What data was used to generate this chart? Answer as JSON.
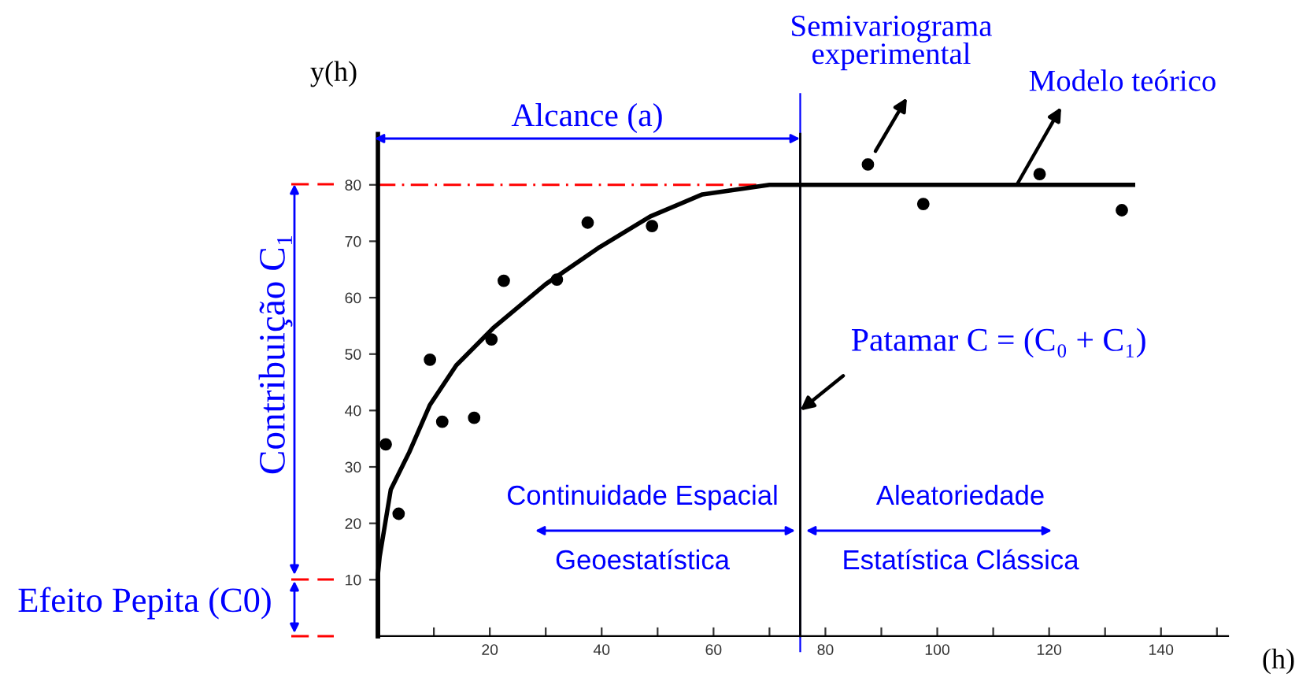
{
  "chart_data": {
    "type": "scatter",
    "xlabel": "(h)",
    "ylabel": "y(h)",
    "xlim": [
      0,
      152
    ],
    "ylim": [
      0,
      89
    ],
    "xticks": [
      {
        "value": 10,
        "label": null
      },
      20,
      {
        "value": 30,
        "label": null
      },
      40,
      {
        "value": 50,
        "label": null
      },
      60,
      {
        "value": 70,
        "label": null
      },
      80,
      {
        "value": 90,
        "label": null
      },
      100,
      {
        "value": 110,
        "label": null
      },
      120,
      {
        "value": 130,
        "label": null
      },
      140,
      {
        "value": 150,
        "label": null
      }
    ],
    "yticks": [
      10,
      20,
      30,
      40,
      50,
      60,
      70,
      80
    ],
    "grid": false,
    "series": [
      {
        "color": "#000000",
        "marker": "circle",
        "x": [
          1.4,
          3.7,
          9.3,
          11.5,
          17.2,
          20.3,
          22.5,
          32,
          37.5,
          49,
          87.6,
          97.5,
          118.3,
          133
        ],
        "values": [
          34,
          21.7,
          49,
          38,
          38.7,
          52.6,
          63,
          63.2,
          73.3,
          72.7,
          83.6,
          76.6,
          81.9,
          75.5
        ]
      },
      {
        "type": "line",
        "color": "#000000",
        "marker": "none",
        "line_style": "solid",
        "x": [
          0,
          0,
          0.3,
          2.3,
          5.6,
          9.3,
          14,
          20.6,
          30,
          39.4,
          48.7,
          58,
          70,
          75.5,
          135
        ],
        "values": [
          0,
          11,
          14,
          26,
          32.6,
          41,
          48,
          54.6,
          62.4,
          68.8,
          74.4,
          78.3,
          80,
          80,
          80
        ]
      }
    ],
    "ref_lines": [
      {
        "axis": "y",
        "value": 80,
        "color": "#ff0000",
        "line_style": "dashed"
      },
      {
        "axis": "x",
        "value": 75.5,
        "color": "#000000",
        "line_style": "solid"
      },
      {
        "axis": "x",
        "value": 75.5,
        "color": "#0000ff",
        "line_style": "solid"
      }
    ],
    "annotations": [
      "Alcance (a)",
      "Semivariograma\nexperimental",
      "Modelo teórico",
      {
        "text": "Patamar C = (C₀ + C₁)",
        "x": 75.5,
        "y": 40
      },
      "Contribuição C₁",
      "Efeito Pepita (C0)",
      "Continuidade Espacial",
      "Geoestatística",
      "Aleatoriedade",
      "Estatística Clássica"
    ]
  }
}
